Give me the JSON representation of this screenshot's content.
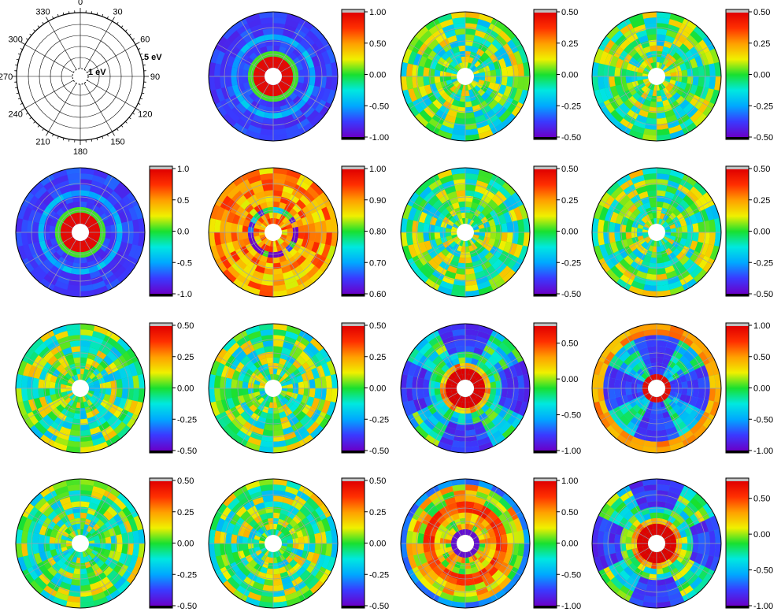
{
  "colors": {
    "colormap": [
      "#6a00c8",
      "#3a3aff",
      "#00a8ff",
      "#00e8e0",
      "#18e030",
      "#f0f000",
      "#ffa000",
      "#ff3000",
      "#e00000"
    ],
    "colormap_top_overflow": "#c0c0c0",
    "colormap_bottom_overflow": "#000000",
    "grid": "#9aa0b0"
  },
  "chart_data": {
    "type": "polar-heatmap",
    "reference_axes": {
      "angle_ticks": [
        "0",
        "30",
        "60",
        "90",
        "120",
        "150",
        "180",
        "210",
        "240",
        "270",
        "300",
        "330"
      ],
      "radial_labels": [
        "1 eV",
        "5 eV"
      ]
    },
    "panels": [
      {
        "id": "r1c2",
        "row": 1,
        "col": 2,
        "pattern": "ring",
        "level": -0.75,
        "colorbar": {
          "min": -1.0,
          "max": 1.0,
          "ticks": [
            "1.00",
            "0.50",
            "0.00",
            "-0.50",
            "-1.00"
          ]
        }
      },
      {
        "id": "r1c3",
        "row": 1,
        "col": 3,
        "pattern": "speckle",
        "level": 0.0,
        "colorbar": {
          "min": -0.5,
          "max": 0.5,
          "ticks": [
            "0.50",
            "0.25",
            "0.00",
            "-0.25",
            "-0.50"
          ]
        }
      },
      {
        "id": "r1c4",
        "row": 1,
        "col": 4,
        "pattern": "speckle",
        "level": 0.0,
        "colorbar": {
          "min": -0.5,
          "max": 0.5,
          "ticks": [
            "0.50",
            "0.25",
            "0.00",
            "-0.25",
            "-0.50"
          ]
        }
      },
      {
        "id": "r2c1",
        "row": 2,
        "col": 1,
        "pattern": "ring",
        "level": -0.75,
        "colorbar": {
          "min": -1.0,
          "max": 1.0,
          "ticks": [
            "1.0",
            "0.5",
            "0.0",
            "-0.5",
            "-1.0"
          ]
        }
      },
      {
        "id": "r2c2",
        "row": 2,
        "col": 2,
        "pattern": "high",
        "level": 0.9,
        "colorbar": {
          "min": 0.6,
          "max": 1.0,
          "ticks": [
            "1.00",
            "0.90",
            "0.80",
            "0.70",
            "0.60"
          ]
        }
      },
      {
        "id": "r2c3",
        "row": 2,
        "col": 3,
        "pattern": "speckle",
        "level": 0.0,
        "colorbar": {
          "min": -0.5,
          "max": 0.5,
          "ticks": [
            "0.50",
            "0.25",
            "0.00",
            "-0.25",
            "-0.50"
          ]
        }
      },
      {
        "id": "r2c4",
        "row": 2,
        "col": 4,
        "pattern": "speckle",
        "level": 0.0,
        "colorbar": {
          "min": -0.5,
          "max": 0.5,
          "ticks": [
            "0.50",
            "0.25",
            "0.00",
            "-0.25",
            "-0.50"
          ]
        }
      },
      {
        "id": "r3c1",
        "row": 3,
        "col": 1,
        "pattern": "speckle",
        "level": 0.0,
        "colorbar": {
          "min": -0.5,
          "max": 0.5,
          "ticks": [
            "0.50",
            "0.25",
            "0.00",
            "-0.25",
            "-0.50"
          ]
        }
      },
      {
        "id": "r3c2",
        "row": 3,
        "col": 2,
        "pattern": "speckle",
        "level": 0.0,
        "colorbar": {
          "min": -0.5,
          "max": 0.5,
          "ticks": [
            "0.50",
            "0.25",
            "0.00",
            "-0.25",
            "-0.50"
          ]
        }
      },
      {
        "id": "r3c3",
        "row": 3,
        "col": 3,
        "pattern": "cross-ring",
        "level": -0.3,
        "colorbar": {
          "min": -1.0,
          "max": 0.75,
          "ticks": [
            "0.50",
            "0.00",
            "-0.50",
            "-1.00"
          ]
        }
      },
      {
        "id": "r3c4",
        "row": 3,
        "col": 4,
        "pattern": "cross-outer",
        "level": -0.3,
        "colorbar": {
          "min": -1.0,
          "max": 1.0,
          "ticks": [
            "1.00",
            "0.50",
            "0.00",
            "-0.50",
            "-1.00"
          ]
        }
      },
      {
        "id": "r4c1",
        "row": 4,
        "col": 1,
        "pattern": "speckle",
        "level": 0.0,
        "colorbar": {
          "min": -0.5,
          "max": 0.5,
          "ticks": [
            "0.50",
            "0.25",
            "0.00",
            "-0.25",
            "-0.50"
          ]
        }
      },
      {
        "id": "r4c2",
        "row": 4,
        "col": 2,
        "pattern": "speckle",
        "level": 0.0,
        "colorbar": {
          "min": -0.5,
          "max": 0.5,
          "ticks": [
            "0.50",
            "0.25",
            "0.00",
            "-0.25",
            "-0.50"
          ]
        }
      },
      {
        "id": "r4c3",
        "row": 4,
        "col": 3,
        "pattern": "hot-ring",
        "level": 0.3,
        "colorbar": {
          "min": -1.0,
          "max": 1.0,
          "ticks": [
            "1.00",
            "0.50",
            "0.00",
            "-0.50",
            "-1.00"
          ]
        }
      },
      {
        "id": "r4c4",
        "row": 4,
        "col": 4,
        "pattern": "cross-ring",
        "level": -0.2,
        "colorbar": {
          "min": -1.0,
          "max": 0.75,
          "ticks": [
            "0.50",
            "0.00",
            "-0.50",
            "-1.00"
          ]
        }
      }
    ]
  }
}
